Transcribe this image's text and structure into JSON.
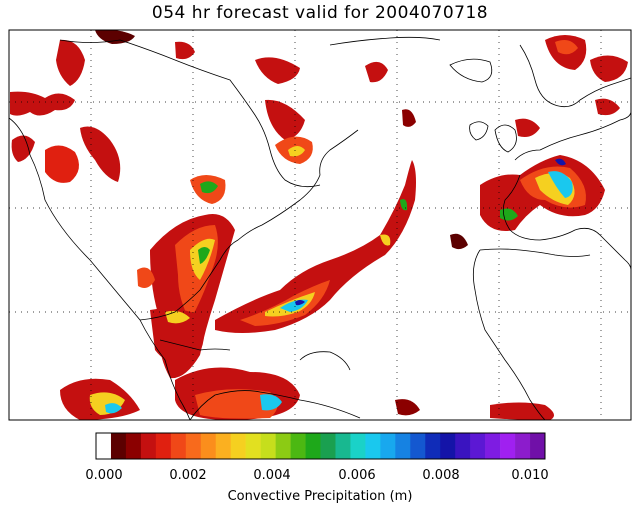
{
  "title": "054 hr forecast valid for 2004070718",
  "colorbar": {
    "title": "Convective Precipitation  (m)",
    "tick_labels": [
      "0.000",
      "0.002",
      "0.004",
      "0.006",
      "0.008",
      "0.010"
    ],
    "colors": [
      "#ffffff",
      "#5c0000",
      "#8b0000",
      "#c41010",
      "#e02010",
      "#f04818",
      "#f86a1c",
      "#fb8e1c",
      "#fbb020",
      "#f5d020",
      "#e2e020",
      "#c6de1c",
      "#8ccb14",
      "#4cb812",
      "#1ea81a",
      "#1aa050",
      "#18b890",
      "#1ad2c8",
      "#1ac8ee",
      "#18a8ee",
      "#1682e2",
      "#1458d0",
      "#102cb8",
      "#1414a8",
      "#3a14c0",
      "#5c18d4",
      "#7e1ce2",
      "#a020f0",
      "#8c1ccc",
      "#7010a8"
    ]
  },
  "map": {
    "projection": "cylindrical equidistant, North Atlantic region",
    "colors": {
      "coast": "#000000",
      "grid": "#000000",
      "rain_low": "#8b0000",
      "rain_mid": "#f04818",
      "rain_high": "#f5d020",
      "rain_peak": "#1ac8ee"
    }
  }
}
